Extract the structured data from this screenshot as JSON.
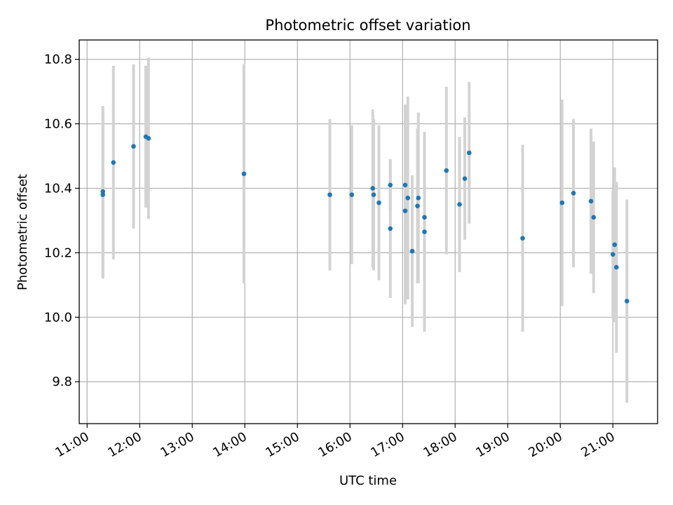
{
  "chart_data": {
    "type": "scatter",
    "title": "Photometric offset variation",
    "xlabel": "UTC time",
    "ylabel": "Photometric offset",
    "x_ticks": [
      "11:00",
      "12:00",
      "13:00",
      "14:00",
      "15:00",
      "16:00",
      "17:00",
      "18:00",
      "19:00",
      "20:00",
      "21:00"
    ],
    "y_ticks": [
      "9.8",
      "10.0",
      "10.2",
      "10.4",
      "10.6",
      "10.8"
    ],
    "xlim": [
      "10:51",
      "21:51"
    ],
    "ylim": [
      9.67,
      10.86
    ],
    "grid": true,
    "colors": {
      "point": "#1f77b4",
      "errorbar": "#d3d3d3",
      "grid": "#b0b0b0"
    },
    "points": [
      {
        "x": "11:18",
        "y": 10.39,
        "err": 0.265
      },
      {
        "x": "11:18",
        "y": 10.38,
        "err": 0.26
      },
      {
        "x": "11:30",
        "y": 10.48,
        "err": 0.3
      },
      {
        "x": "11:53",
        "y": 10.53,
        "err": 0.255
      },
      {
        "x": "12:07",
        "y": 10.56,
        "err": 0.22
      },
      {
        "x": "12:10",
        "y": 10.555,
        "err": 0.25
      },
      {
        "x": "13:59",
        "y": 10.445,
        "err": 0.34
      },
      {
        "x": "15:37",
        "y": 10.38,
        "err": 0.235
      },
      {
        "x": "16:02",
        "y": 10.38,
        "err": 0.215
      },
      {
        "x": "16:26",
        "y": 10.4,
        "err": 0.245
      },
      {
        "x": "16:27",
        "y": 10.38,
        "err": 0.235
      },
      {
        "x": "16:33",
        "y": 10.355,
        "err": 0.24
      },
      {
        "x": "16:46",
        "y": 10.41,
        "err": 0.08
      },
      {
        "x": "16:46",
        "y": 10.275,
        "err": 0.215
      },
      {
        "x": "17:03",
        "y": 10.33,
        "err": 0.29
      },
      {
        "x": "17:03",
        "y": 10.41,
        "err": 0.25
      },
      {
        "x": "17:06",
        "y": 10.37,
        "err": 0.315
      },
      {
        "x": "17:11",
        "y": 10.205,
        "err": 0.235
      },
      {
        "x": "17:17",
        "y": 10.345,
        "err": 0.24
      },
      {
        "x": "17:18",
        "y": 10.37,
        "err": 0.265
      },
      {
        "x": "17:25",
        "y": 10.31,
        "err": 0.05
      },
      {
        "x": "17:25",
        "y": 10.265,
        "err": 0.31
      },
      {
        "x": "17:50",
        "y": 10.455,
        "err": 0.26
      },
      {
        "x": "18:05",
        "y": 10.35,
        "err": 0.21
      },
      {
        "x": "18:11",
        "y": 10.43,
        "err": 0.19
      },
      {
        "x": "18:16",
        "y": 10.51,
        "err": 0.22
      },
      {
        "x": "19:17",
        "y": 10.245,
        "err": 0.29
      },
      {
        "x": "20:02",
        "y": 10.355,
        "err": 0.32
      },
      {
        "x": "20:15",
        "y": 10.385,
        "err": 0.23
      },
      {
        "x": "20:35",
        "y": 10.36,
        "err": 0.225
      },
      {
        "x": "20:38",
        "y": 10.31,
        "err": 0.235
      },
      {
        "x": "21:00",
        "y": 10.195,
        "err": 0.2
      },
      {
        "x": "21:02",
        "y": 10.225,
        "err": 0.24
      },
      {
        "x": "21:04",
        "y": 10.155,
        "err": 0.265
      },
      {
        "x": "21:16",
        "y": 10.05,
        "err": 0.315
      }
    ]
  }
}
